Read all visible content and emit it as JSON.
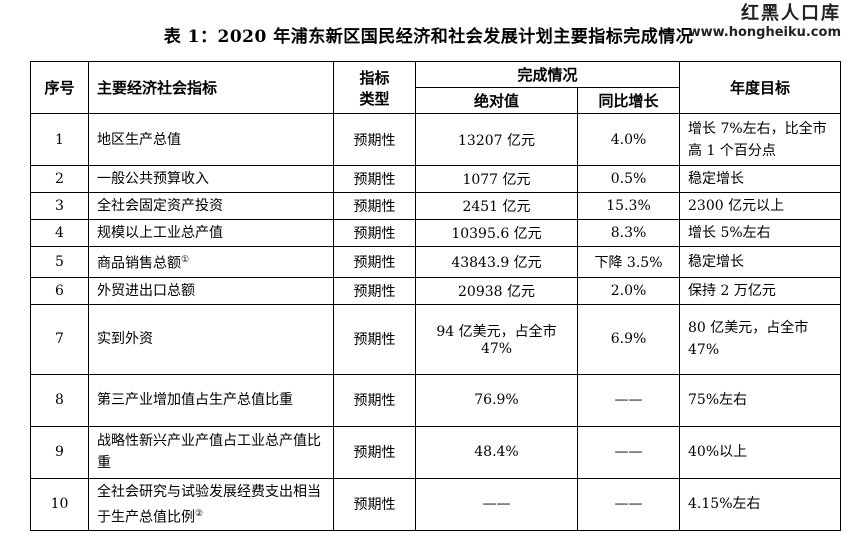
{
  "title": "表 1：2020 年浦东新区国民经济和社会发展计划主要指标完成情况",
  "watermark": {
    "name": "红黑人口库",
    "url": "www.hongheiku.com"
  },
  "headers": {
    "index": "序号",
    "indicator": "主要经济社会指标",
    "type_line1": "指标",
    "type_line2": "类型",
    "completion": "完成情况",
    "absolute": "绝对值",
    "yoy": "同比增长",
    "target": "年度目标"
  },
  "rows": [
    {
      "no": "1",
      "indicator": "地区生产总值",
      "note": "",
      "type": "预期性",
      "absolute": "13207 亿元",
      "yoy": "4.0%",
      "target": "增长 7%左右，比全市高 1 个百分点"
    },
    {
      "no": "2",
      "indicator": "一般公共预算收入",
      "note": "",
      "type": "预期性",
      "absolute": "1077 亿元",
      "yoy": "0.5%",
      "target": "稳定增长"
    },
    {
      "no": "3",
      "indicator": "全社会固定资产投资",
      "note": "",
      "type": "预期性",
      "absolute": "2451 亿元",
      "yoy": "15.3%",
      "target": "2300 亿元以上"
    },
    {
      "no": "4",
      "indicator": "规模以上工业总产值",
      "note": "",
      "type": "预期性",
      "absolute": "10395.6 亿元",
      "yoy": "8.3%",
      "target": "增长 5%左右"
    },
    {
      "no": "5",
      "indicator": "商品销售总额",
      "note": "①",
      "type": "预期性",
      "absolute": "43843.9 亿元",
      "yoy": "下降 3.5%",
      "target": "稳定增长"
    },
    {
      "no": "6",
      "indicator": "外贸进出口总额",
      "note": "",
      "type": "预期性",
      "absolute": "20938 亿元",
      "yoy": "2.0%",
      "target": "保持 2 万亿元"
    },
    {
      "no": "7",
      "indicator": "实到外资",
      "note": "",
      "type": "预期性",
      "absolute": "94 亿美元，占全市 47%",
      "yoy": "6.9%",
      "target": "80 亿美元，占全市 47%"
    },
    {
      "no": "8",
      "indicator": "第三产业增加值占生产总值比重",
      "note": "",
      "type": "预期性",
      "absolute": "76.9%",
      "yoy": "——",
      "target": "75%左右"
    },
    {
      "no": "9",
      "indicator": "战略性新兴产业产值占工业总产值比重",
      "note": "",
      "type": "预期性",
      "absolute": "48.4%",
      "yoy": "——",
      "target": "40%以上"
    },
    {
      "no": "10",
      "indicator": "全社会研究与试验发展经费支出相当于生产总值比例",
      "note": "②",
      "type": "预期性",
      "absolute": "——",
      "yoy": "——",
      "target": "4.15%左右"
    }
  ]
}
